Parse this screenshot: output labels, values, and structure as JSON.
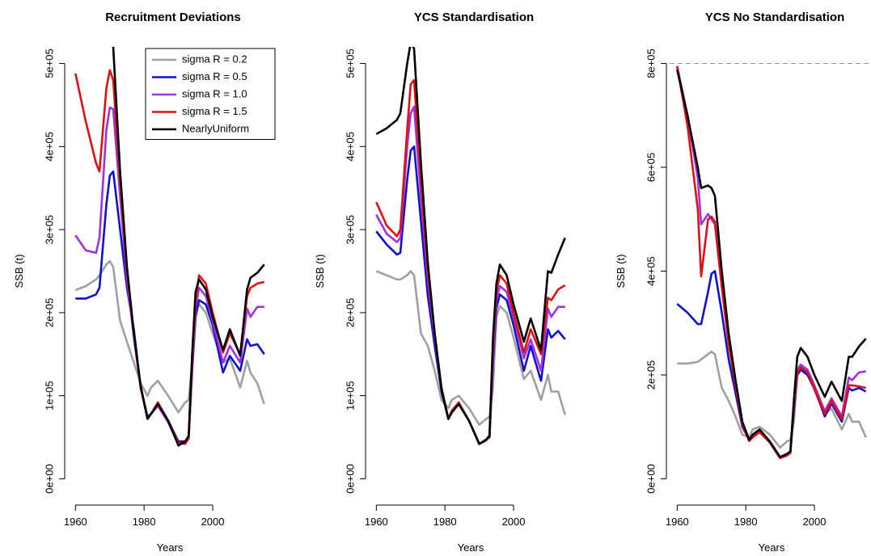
{
  "chart_data": [
    {
      "type": "line",
      "title": "Recruitment Deviations",
      "xlabel": "Years",
      "ylabel": "SSB (t)",
      "x": [
        1960,
        1963,
        1966,
        1967,
        1969,
        1970,
        1971,
        1973,
        1975,
        1977,
        1979,
        1981,
        1982,
        1984,
        1987,
        1990,
        1992,
        1993,
        1994,
        1995,
        1996,
        1998,
        2000,
        2003,
        2005,
        2008,
        2010,
        2011,
        2013,
        2015
      ],
      "xlim": [
        1957.8,
        2017.2
      ],
      "xticks": [
        1960,
        1980,
        2000
      ],
      "ylim": [
        -20000,
        520000
      ],
      "yticks": [
        {
          "value": 0,
          "label": "0e+00"
        },
        {
          "value": 100000,
          "label": "1e+05"
        },
        {
          "value": 200000,
          "label": "2e+05"
        },
        {
          "value": 300000,
          "label": "3e+05"
        },
        {
          "value": 400000,
          "label": "4e+05"
        },
        {
          "value": 500000,
          "label": "5e+05"
        }
      ],
      "legend": "topright",
      "series": [
        {
          "name": "sigma R = 0.2",
          "color": "#a0a0a0",
          "values": [
            227000,
            232000,
            240000,
            245000,
            258000,
            262000,
            255000,
            190000,
            165000,
            140000,
            115000,
            100000,
            110000,
            118000,
            100000,
            80000,
            92000,
            95000,
            140000,
            200000,
            210000,
            200000,
            175000,
            140000,
            145000,
            110000,
            142000,
            128000,
            115000,
            90000
          ]
        },
        {
          "name": "sigma R = 0.5",
          "color": "#1010d0",
          "values": [
            217000,
            217000,
            222000,
            230000,
            330000,
            365000,
            370000,
            300000,
            230000,
            180000,
            110000,
            75000,
            78000,
            90000,
            70000,
            45000,
            45000,
            50000,
            130000,
            195000,
            215000,
            210000,
            185000,
            128000,
            148000,
            130000,
            168000,
            160000,
            162000,
            150000
          ]
        },
        {
          "name": "sigma R = 1.0",
          "color": "#a030e0",
          "values": [
            293000,
            275000,
            272000,
            290000,
            420000,
            447000,
            445000,
            340000,
            240000,
            170000,
            110000,
            73000,
            78000,
            88000,
            68000,
            42000,
            43000,
            48000,
            135000,
            205000,
            230000,
            220000,
            190000,
            140000,
            160000,
            140000,
            205000,
            195000,
            207000,
            207000
          ]
        },
        {
          "name": "sigma R = 1.5",
          "color": "#e01010",
          "values": [
            488000,
            430000,
            380000,
            370000,
            470000,
            492000,
            480000,
            360000,
            250000,
            175000,
            110000,
            72000,
            78000,
            92000,
            70000,
            43000,
            42000,
            50000,
            140000,
            215000,
            245000,
            235000,
            200000,
            152000,
            175000,
            150000,
            220000,
            230000,
            235000,
            237000
          ]
        },
        {
          "name": "NearlyUniform",
          "color": "#000000",
          "values": [
            null,
            null,
            null,
            null,
            null,
            null,
            520000,
            370000,
            255000,
            175000,
            112000,
            72000,
            78000,
            90000,
            70000,
            40000,
            45000,
            52000,
            150000,
            225000,
            240000,
            228000,
            195000,
            155000,
            180000,
            148000,
            228000,
            242000,
            248000,
            258000
          ]
        }
      ]
    },
    {
      "type": "line",
      "title": "YCS Standardisation",
      "xlabel": "Years",
      "ylabel": "SSB (t)",
      "x": [
        1960,
        1963,
        1966,
        1967,
        1969,
        1970,
        1971,
        1973,
        1975,
        1977,
        1979,
        1981,
        1982,
        1984,
        1987,
        1990,
        1992,
        1993,
        1994,
        1995,
        1996,
        1998,
        2000,
        2003,
        2005,
        2008,
        2010,
        2011,
        2013,
        2015
      ],
      "xlim": [
        1957.8,
        2017.2
      ],
      "xticks": [
        1960,
        1980,
        2000
      ],
      "ylim": [
        -20000,
        520000
      ],
      "yticks": [
        {
          "value": 0,
          "label": "0e+00"
        },
        {
          "value": 100000,
          "label": "1e+05"
        },
        {
          "value": 200000,
          "label": "2e+05"
        },
        {
          "value": 300000,
          "label": "3e+05"
        },
        {
          "value": 400000,
          "label": "4e+05"
        },
        {
          "value": 500000,
          "label": "5e+05"
        }
      ],
      "series": [
        {
          "color": "#a0a0a0",
          "values": [
            250000,
            245000,
            240000,
            240000,
            245000,
            250000,
            245000,
            175000,
            160000,
            130000,
            95000,
            85000,
            95000,
            100000,
            85000,
            65000,
            72000,
            75000,
            110000,
            195000,
            208000,
            200000,
            170000,
            120000,
            130000,
            95000,
            125000,
            105000,
            105000,
            77000
          ]
        },
        {
          "color": "#1010d0",
          "values": [
            298000,
            282000,
            270000,
            272000,
            360000,
            395000,
            400000,
            310000,
            220000,
            160000,
            105000,
            72000,
            80000,
            90000,
            70000,
            42000,
            47000,
            50000,
            140000,
            205000,
            222000,
            215000,
            185000,
            130000,
            160000,
            118000,
            180000,
            170000,
            178000,
            168000
          ]
        },
        {
          "color": "#a030e0",
          "values": [
            318000,
            295000,
            285000,
            290000,
            400000,
            440000,
            448000,
            340000,
            240000,
            170000,
            108000,
            72000,
            80000,
            90000,
            70000,
            42000,
            47000,
            52000,
            150000,
            215000,
            232000,
            225000,
            195000,
            145000,
            168000,
            130000,
            205000,
            195000,
            207000,
            207000
          ]
        },
        {
          "color": "#e01010",
          "values": [
            333000,
            305000,
            292000,
            300000,
            420000,
            475000,
            480000,
            360000,
            250000,
            175000,
            110000,
            72000,
            82000,
            92000,
            70000,
            42000,
            46000,
            52000,
            160000,
            225000,
            245000,
            235000,
            200000,
            152000,
            180000,
            150000,
            218000,
            215000,
            228000,
            233000
          ]
        },
        {
          "color": "#000000",
          "values": [
            415000,
            422000,
            432000,
            440000,
            500000,
            525000,
            518000,
            380000,
            260000,
            175000,
            108000,
            72000,
            80000,
            90000,
            70000,
            42000,
            47000,
            52000,
            170000,
            235000,
            258000,
            245000,
            210000,
            165000,
            193000,
            155000,
            250000,
            248000,
            270000,
            290000
          ]
        }
      ]
    },
    {
      "type": "line",
      "title": "YCS No Standardisation",
      "xlabel": "Years",
      "ylabel": "SSB (t)",
      "x": [
        1960,
        1963,
        1966,
        1967,
        1969,
        1970,
        1971,
        1973,
        1975,
        1977,
        1979,
        1981,
        1982,
        1984,
        1987,
        1990,
        1992,
        1993,
        1994,
        1995,
        1996,
        1998,
        2000,
        2003,
        2005,
        2008,
        2010,
        2011,
        2013,
        2015
      ],
      "xlim": [
        1957.8,
        2017.2
      ],
      "xticks": [
        1960,
        1980,
        2000
      ],
      "ylim": [
        -32000,
        832000
      ],
      "yticks": [
        {
          "value": 0,
          "label": "0e+00"
        },
        {
          "value": 200000,
          "label": "2e+05"
        },
        {
          "value": 400000,
          "label": "4e+05"
        },
        {
          "value": 600000,
          "label": "6e+05"
        },
        {
          "value": 800000,
          "label": "8e+05"
        }
      ],
      "reference_line": 800000,
      "series": [
        {
          "color": "#a0a0a0",
          "values": [
            222000,
            222000,
            225000,
            230000,
            240000,
            245000,
            240000,
            175000,
            150000,
            120000,
            85000,
            80000,
            95000,
            100000,
            85000,
            60000,
            72000,
            75000,
            110000,
            200000,
            210000,
            200000,
            170000,
            125000,
            135000,
            95000,
            125000,
            110000,
            110000,
            80000
          ]
        },
        {
          "color": "#1010d0",
          "values": [
            337000,
            320000,
            298000,
            298000,
            360000,
            395000,
            400000,
            320000,
            230000,
            165000,
            100000,
            75000,
            80000,
            90000,
            70000,
            40000,
            45000,
            50000,
            130000,
            200000,
            210000,
            200000,
            175000,
            120000,
            145000,
            110000,
            175000,
            170000,
            175000,
            168000
          ]
        },
        {
          "color": "#a030e0",
          "values": [
            795000,
            700000,
            580000,
            490000,
            510000,
            500000,
            490000,
            370000,
            260000,
            180000,
            105000,
            73000,
            80000,
            90000,
            70000,
            40000,
            45000,
            50000,
            140000,
            210000,
            220000,
            210000,
            180000,
            130000,
            155000,
            120000,
            195000,
            190000,
            205000,
            207000
          ]
        },
        {
          "color": "#e01010",
          "values": [
            795000,
            680000,
            520000,
            390000,
            500000,
            505000,
            495000,
            370000,
            260000,
            180000,
            105000,
            73000,
            80000,
            90000,
            70000,
            40000,
            45000,
            50000,
            140000,
            205000,
            215000,
            205000,
            175000,
            125000,
            150000,
            115000,
            180000,
            180000,
            178000,
            175000
          ]
        },
        {
          "color": "#000000",
          "values": [
            788000,
            700000,
            600000,
            560000,
            565000,
            560000,
            545000,
            400000,
            280000,
            190000,
            110000,
            75000,
            85000,
            95000,
            72000,
            42000,
            48000,
            53000,
            150000,
            235000,
            252000,
            235000,
            200000,
            158000,
            187000,
            150000,
            235000,
            235000,
            255000,
            270000
          ]
        }
      ]
    }
  ]
}
